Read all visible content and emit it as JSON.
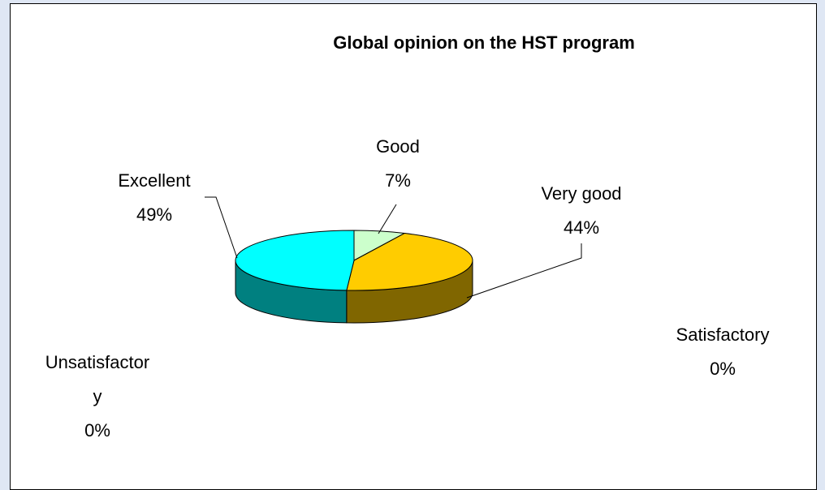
{
  "chart_data": {
    "type": "pie",
    "title": "Global opinion on the HST program",
    "categories": [
      "Good",
      "Very good",
      "Satisfactory",
      "Unsatisfactory",
      "Excellent"
    ],
    "values": [
      7,
      44,
      0,
      0,
      49
    ],
    "value_labels": [
      "7%",
      "44%",
      "0%",
      "0%",
      "49%"
    ],
    "colors": [
      "#ccffcc",
      "#ffcc00",
      null,
      null,
      "#00ffff"
    ],
    "three_d": true
  }
}
